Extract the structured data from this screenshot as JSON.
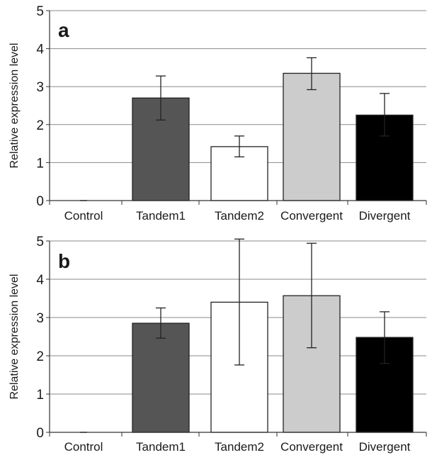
{
  "chart_data": [
    {
      "type": "bar",
      "panel_label": "a",
      "categories": [
        "Control",
        "Tandem1",
        "Tandem2",
        "Convergent",
        "Divergent"
      ],
      "values": [
        0.0,
        2.7,
        1.42,
        3.35,
        2.25
      ],
      "error_low": [
        0.0,
        2.12,
        1.15,
        2.92,
        1.7
      ],
      "error_high": [
        0.0,
        3.28,
        1.7,
        3.76,
        2.82
      ],
      "bar_colors": [
        "#ffffff",
        "#555555",
        "#ffffff",
        "#cccccc",
        "#000000"
      ],
      "ylabel": "Relative expression level",
      "xlabel": "",
      "ylim": [
        0,
        5
      ],
      "yticks": [
        "0",
        "1",
        "2",
        "3",
        "4",
        "5"
      ],
      "grid": true
    },
    {
      "type": "bar",
      "panel_label": "b",
      "categories": [
        "Control",
        "Tandem1",
        "Tandem2",
        "Convergent",
        "Divergent"
      ],
      "values": [
        0.0,
        2.85,
        3.4,
        3.57,
        2.48
      ],
      "error_low": [
        0.0,
        2.46,
        1.76,
        2.21,
        1.8
      ],
      "error_high": [
        0.0,
        3.25,
        5.05,
        4.94,
        3.15
      ],
      "bar_colors": [
        "#ffffff",
        "#555555",
        "#ffffff",
        "#cccccc",
        "#000000"
      ],
      "ylabel": "Relative expression level",
      "xlabel": "",
      "ylim": [
        0,
        5
      ],
      "yticks": [
        "0",
        "1",
        "2",
        "3",
        "4",
        "5"
      ],
      "grid": true
    }
  ]
}
